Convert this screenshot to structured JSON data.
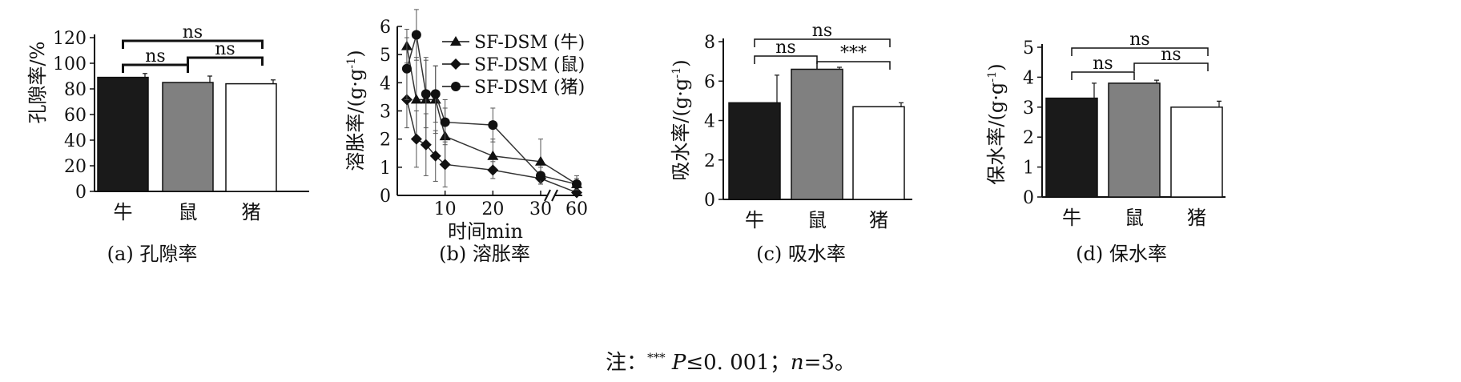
{
  "chart_data": [
    {
      "type": "bar",
      "panel": "a",
      "caption": "(a) 孔隙率",
      "ylabel": "孔隙率/%",
      "categories": [
        "牛",
        "鼠",
        "猪"
      ],
      "values": [
        89,
        85,
        84
      ],
      "errors": [
        3,
        5,
        3
      ],
      "colors": [
        "#1a1a1a",
        "#808080",
        "#ffffff"
      ],
      "ylim": [
        0,
        120
      ],
      "yticks": [
        0,
        20,
        40,
        60,
        80,
        100,
        120
      ],
      "significance": [
        {
          "from": 0,
          "to": 1,
          "label": "ns"
        },
        {
          "from": 1,
          "to": 2,
          "label": "ns"
        },
        {
          "from": 0,
          "to": 2,
          "label": "ns"
        }
      ]
    },
    {
      "type": "line",
      "panel": "b",
      "caption": "(b) 溶胀率",
      "ylabel": "溶胀率/(g·g",
      "ylabel_sup": "-1",
      "ylabel_end": ")",
      "xlabel": "时间min",
      "ylim": [
        0,
        6
      ],
      "yticks": [
        0,
        1,
        2,
        3,
        4,
        5,
        6
      ],
      "xticks": [
        "10",
        "20",
        "30",
        "60"
      ],
      "legend_position": "top-right",
      "series": [
        {
          "name": "SF-DSM (牛)",
          "marker": "triangle",
          "x": [
            2,
            4,
            6,
            8,
            10,
            20,
            30,
            60
          ],
          "y": [
            5.3,
            3.4,
            3.4,
            3.4,
            2.1,
            1.4,
            1.2,
            0.4
          ],
          "err": [
            0.6,
            1.5,
            1.5,
            1.2,
            1.0,
            0.6,
            0.8,
            0.3
          ]
        },
        {
          "name": "SF-DSM (鼠)",
          "marker": "diamond",
          "x": [
            2,
            4,
            6,
            8,
            10,
            20,
            30,
            60
          ],
          "y": [
            3.4,
            2.0,
            1.8,
            1.4,
            1.1,
            0.9,
            0.6,
            0.1
          ],
          "err": [
            1.0,
            1.0,
            1.1,
            0.9,
            0.8,
            0.3,
            0.2,
            0.1
          ]
        },
        {
          "name": "SF-DSM (猪)",
          "marker": "circle",
          "x": [
            2,
            4,
            6,
            8,
            10,
            20,
            30,
            60
          ],
          "y": [
            4.5,
            5.7,
            3.6,
            3.6,
            2.6,
            2.5,
            0.7,
            0.4
          ],
          "err": [
            1.1,
            0.9,
            1.2,
            1.0,
            0.8,
            0.6,
            0.3,
            0.2
          ]
        }
      ]
    },
    {
      "type": "bar",
      "panel": "c",
      "caption": "(c) 吸水率",
      "ylabel": "吸水率/(g·g",
      "ylabel_sup": "-1",
      "ylabel_end": ")",
      "categories": [
        "牛",
        "鼠",
        "猪"
      ],
      "values": [
        4.9,
        6.6,
        4.7
      ],
      "errors": [
        1.4,
        0.1,
        0.2
      ],
      "colors": [
        "#1a1a1a",
        "#808080",
        "#ffffff"
      ],
      "ylim": [
        0,
        8
      ],
      "yticks": [
        0,
        2,
        4,
        6,
        8
      ],
      "significance": [
        {
          "from": 0,
          "to": 1,
          "label": "ns"
        },
        {
          "from": 1,
          "to": 2,
          "label": "***"
        },
        {
          "from": 0,
          "to": 2,
          "label": "ns"
        }
      ]
    },
    {
      "type": "bar",
      "panel": "d",
      "caption": "(d) 保水率",
      "ylabel": "保水率/(g·g",
      "ylabel_sup": "-1",
      "ylabel_end": ")",
      "categories": [
        "牛",
        "鼠",
        "猪"
      ],
      "values": [
        3.3,
        3.8,
        3.0
      ],
      "errors": [
        0.5,
        0.1,
        0.2
      ],
      "colors": [
        "#1a1a1a",
        "#808080",
        "#ffffff"
      ],
      "ylim": [
        0,
        5
      ],
      "yticks": [
        0,
        1,
        2,
        3,
        4,
        5
      ],
      "significance": [
        {
          "from": 0,
          "to": 1,
          "label": "ns"
        },
        {
          "from": 1,
          "to": 2,
          "label": "ns"
        },
        {
          "from": 0,
          "to": 2,
          "label": "ns"
        }
      ]
    }
  ],
  "note": {
    "prefix": "注：",
    "stars": "***",
    "p": "P",
    "text": "≤0. 001；",
    "n": "n",
    "tail": "=3。"
  }
}
